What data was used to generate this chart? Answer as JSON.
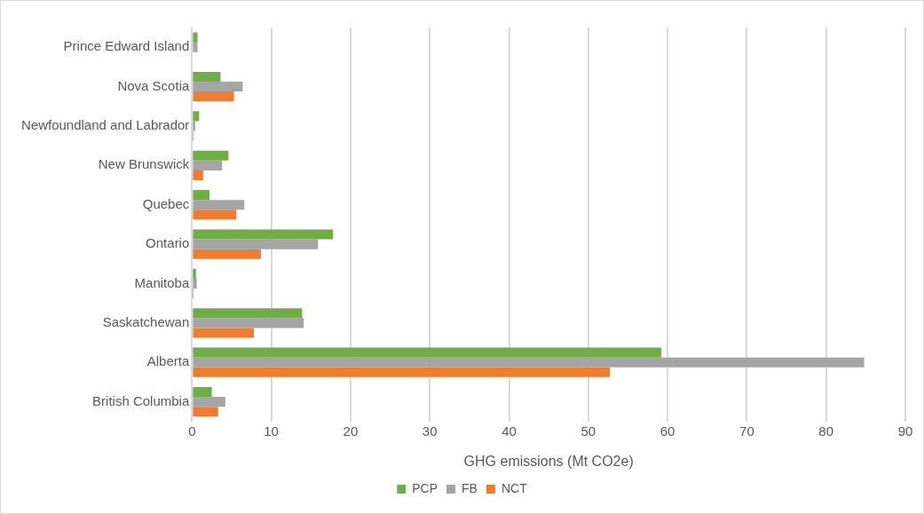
{
  "chart_data": {
    "type": "bar",
    "orientation": "horizontal",
    "xlabel": "GHG emissions (Mt CO2e)",
    "categories": [
      "Prince Edward Island",
      "Nova Scotia",
      "Newfoundland and Labrador",
      "New Brunswick",
      "Quebec",
      "Ontario",
      "Manitoba",
      "Saskatchewan",
      "Alberta",
      "British Columbia"
    ],
    "series": [
      {
        "name": "PCP",
        "color": "#70ad47",
        "values": [
          0.7,
          3.6,
          0.9,
          4.6,
          2.2,
          17.8,
          0.5,
          13.9,
          59.2,
          2.5
        ]
      },
      {
        "name": "FB",
        "color": "#a5a5a5",
        "values": [
          0.7,
          6.4,
          0.4,
          3.8,
          6.6,
          15.9,
          0.6,
          14.1,
          84.8,
          4.2
        ]
      },
      {
        "name": "NCT",
        "color": "#ed7d31",
        "values": [
          null,
          5.3,
          0.2,
          1.4,
          5.6,
          8.7,
          0.2,
          7.8,
          52.7,
          3.3
        ]
      }
    ],
    "xlim": [
      0,
      90
    ],
    "xticks": [
      0,
      10,
      20,
      30,
      40,
      50,
      60,
      70,
      80,
      90
    ],
    "grid": "x",
    "legend": "bottom"
  }
}
